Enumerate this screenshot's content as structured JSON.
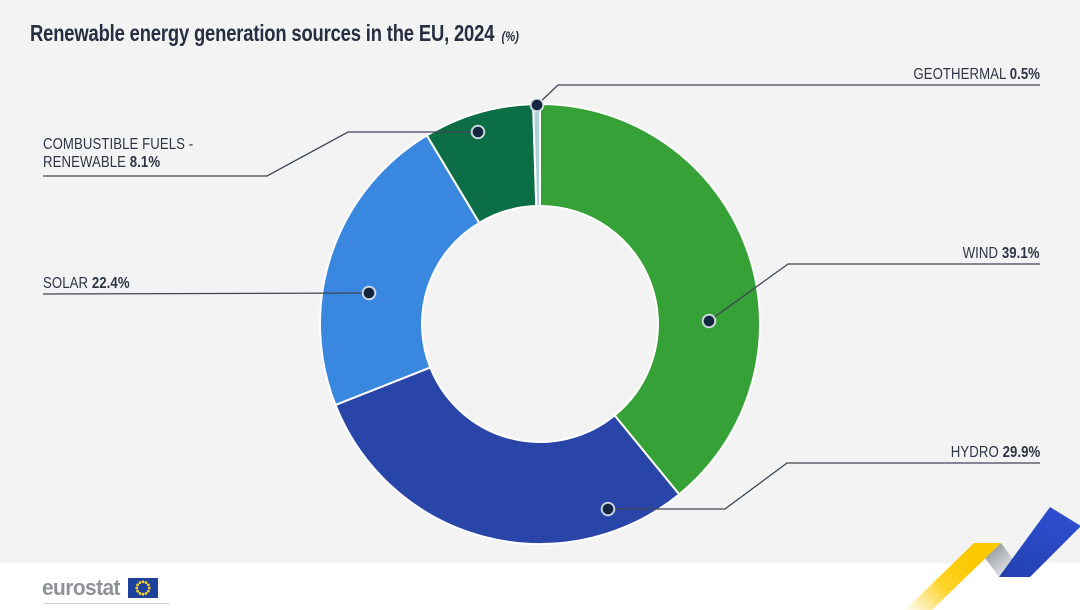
{
  "page": {
    "title": "Renewable energy generation sources in the EU, 2024",
    "title_unit": "(%)",
    "background_color": "#f2f3f2",
    "footer_background_color": "#ffffff",
    "title_color": "#272e42"
  },
  "chart_data": {
    "type": "pie",
    "subtype": "donut",
    "title": "Renewable energy generation sources in the EU, 2024",
    "unit": "%",
    "start_angle": "top",
    "direction": "clockwise",
    "categories": [
      "Wind",
      "Hydro",
      "Solar",
      "Combustible fuels - renewable",
      "Geothermal"
    ],
    "values": [
      39.1,
      29.9,
      22.4,
      8.1,
      0.5
    ],
    "colors": [
      "#36a136",
      "#2845a7",
      "#3a87e0",
      "#0c6e46",
      "#abd1da"
    ],
    "legend_position": "callout-labels",
    "grid": false
  },
  "labels": {
    "geothermal": {
      "name": "GEOTHERMAL",
      "value": "0.5%"
    },
    "wind": {
      "name": "WIND",
      "value": "39.1%"
    },
    "hydro": {
      "name": "HYDRO",
      "value": "29.9%"
    },
    "solar": {
      "name": "SOLAR",
      "value": "22.4%"
    },
    "combustible": {
      "name_line1": "COMBUSTIBLE FUELS -",
      "name_line2": "RENEWABLE",
      "value": "8.1%"
    }
  },
  "footer": {
    "logo_text": "eurostat"
  },
  "decoration": {
    "leader_line_color": "#3f4553",
    "dot_color": "#15273f",
    "zigzag_yellow": "#fdc800",
    "zigzag_blue": "#2b49c3",
    "zigzag_grey": "#9aa0a8",
    "flag_blue": "#1e429b",
    "flag_star_yellow": "#f8d12c"
  }
}
